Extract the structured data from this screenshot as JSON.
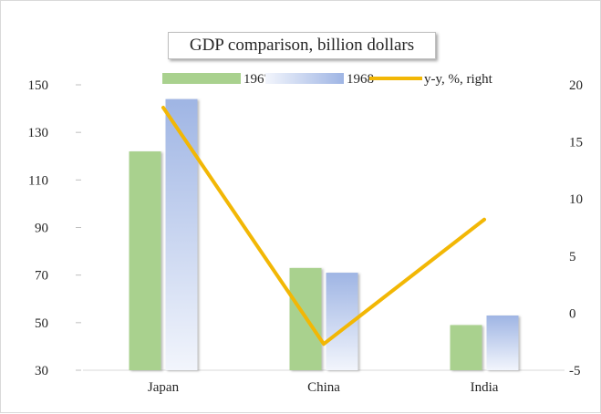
{
  "chart_data": {
    "type": "bar",
    "title": "GDP comparison, billion dollars",
    "categories": [
      "Japan",
      "China",
      "India"
    ],
    "series": [
      {
        "name": "1967",
        "kind": "bar",
        "axis": "left",
        "values": [
          122,
          73,
          49
        ],
        "color": "#a9d18e"
      },
      {
        "name": "1968",
        "kind": "bar",
        "axis": "left",
        "values": [
          144,
          71,
          53
        ],
        "color": "#a4b9e6"
      },
      {
        "name": "y-y, %, right",
        "kind": "line",
        "axis": "right",
        "values": [
          18,
          -2.7,
          8.2
        ],
        "color": "#f2b705"
      }
    ],
    "y_left": {
      "min": 30,
      "max": 150,
      "ticks": [
        30,
        50,
        70,
        90,
        110,
        130,
        150
      ]
    },
    "y_right": {
      "min": -5,
      "max": 20,
      "ticks": [
        -5,
        0,
        5,
        10,
        15,
        20
      ]
    },
    "grid": false,
    "legend_position": "top"
  }
}
